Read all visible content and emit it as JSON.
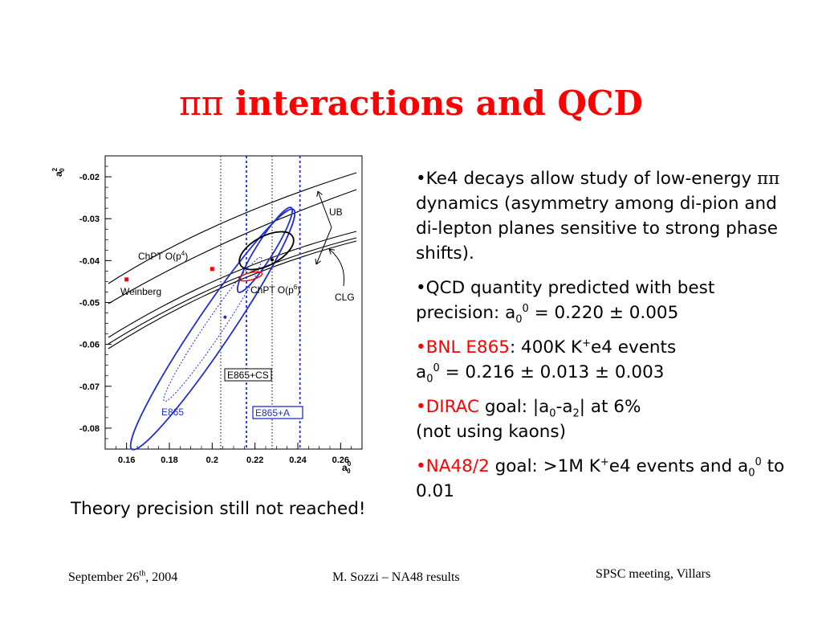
{
  "slide": {
    "title_greek": "ππ",
    "title_text": " interactions and QCD",
    "caption": "Theory precision still not reached!",
    "footer_date_pre": "September 26",
    "footer_date_sup": "th",
    "footer_date_post": ", 2004",
    "footer_author": "M. Sozzi – NA48 results",
    "footer_meeting": "SPSC meeting, Villars",
    "title_color": "#ff0000",
    "highlight_color": "#ff0000",
    "plot_line_color": "#1f2fd0"
  },
  "bullets": [
    {
      "parts": [
        {
          "t": "•Ke4 decays allow study of low-energy "
        },
        {
          "t": "ππ",
          "serif": true
        },
        {
          "t": " dynamics (asymmetry among di-pion and di-lepton planes sensitive to strong phase shifts)."
        }
      ]
    },
    {
      "parts": [
        {
          "t": "•QCD quantity predicted with best precision: a"
        },
        {
          "sub": "0"
        },
        {
          "sup": "0"
        },
        {
          "t": " = 0.220 ± 0.005"
        }
      ]
    },
    {
      "parts": [
        {
          "t": "•BNL E865",
          "red": true
        },
        {
          "t": ": 400K K"
        },
        {
          "sup": "+"
        },
        {
          "t": "e4 events"
        },
        {
          "br": true
        },
        {
          "t": "a"
        },
        {
          "sub": "0"
        },
        {
          "sup": "0"
        },
        {
          "t": " = 0.216 ± 0.013 ± 0.003"
        }
      ]
    },
    {
      "parts": [
        {
          "t": "•DIRAC",
          "red": true
        },
        {
          "t": " goal: |a"
        },
        {
          "sub": "0"
        },
        {
          "t": "-a"
        },
        {
          "sub": "2"
        },
        {
          "t": "| at 6%"
        },
        {
          "br": true
        },
        {
          "t": "(not using kaons)"
        }
      ]
    },
    {
      "parts": [
        {
          "t": "•NA48/2",
          "red": true
        },
        {
          "t": " goal: >1M K"
        },
        {
          "sup": "+"
        },
        {
          "t": "e4 events and a"
        },
        {
          "sub": "0"
        },
        {
          "sup": "0"
        },
        {
          "t": "  to 0.01"
        }
      ]
    }
  ],
  "chart_data": {
    "type": "scatter",
    "xlabel": "a0^0",
    "ylabel": "a0^2",
    "xlim": [
      0.15,
      0.27
    ],
    "ylim": [
      -0.085,
      -0.015
    ],
    "xticks": [
      "0.16",
      "0.18",
      "0.2",
      "0.22",
      "0.24",
      "0.26"
    ],
    "xtick_values": [
      0.16,
      0.18,
      0.2,
      0.22,
      0.24,
      0.26
    ],
    "yticks": [
      "-0.02",
      "-0.03",
      "-0.04",
      "-0.05",
      "-0.06",
      "-0.07",
      "-0.08"
    ],
    "ytick_values": [
      -0.02,
      -0.03,
      -0.04,
      -0.05,
      -0.06,
      -0.07,
      -0.08
    ],
    "points": [
      {
        "name": "Weinberg",
        "x": 0.16,
        "y": -0.0445,
        "color": "red"
      },
      {
        "name": "ChPT O(p4)",
        "x": 0.2,
        "y": -0.042,
        "color": "red"
      },
      {
        "name": "",
        "x": 0.228,
        "y": -0.0398,
        "color": "black"
      },
      {
        "name": "",
        "x": 0.206,
        "y": -0.0535,
        "color": "blue"
      }
    ],
    "vlines": [
      {
        "name": "E865+CS",
        "values": [
          0.204,
          0.228
        ],
        "color": "black"
      },
      {
        "name": "E865+A",
        "values": [
          0.216,
          0.241
        ],
        "color": "blue"
      }
    ],
    "labels": [
      "UB",
      "CLG",
      "ChPT O(p4)",
      "Weinberg",
      "ChPT O(p6)",
      "E865+CS",
      "E865",
      "E865+A"
    ],
    "ellipses": [
      {
        "name": "E865",
        "cx": 0.205,
        "cy": -0.0555,
        "color": "blue"
      },
      {
        "name": "E865+A",
        "cx": 0.228,
        "cy": -0.037,
        "color": "blue"
      },
      {
        "name": "E865+CS",
        "cx": 0.228,
        "cy": -0.0397,
        "color": "black"
      },
      {
        "name": "ChPT O(p6)",
        "cx": 0.22,
        "cy": -0.0444,
        "color": "red"
      }
    ]
  }
}
